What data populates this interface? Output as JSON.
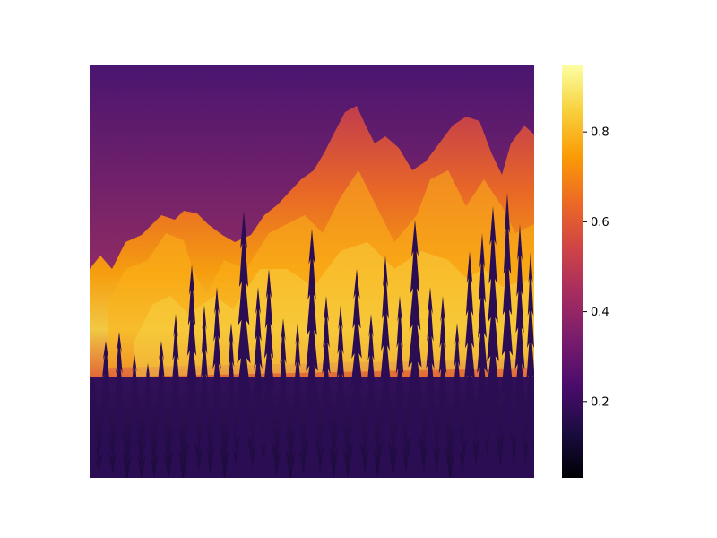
{
  "image": {
    "subject": "forest-fire",
    "colormap": "inferno",
    "axes_visible": false
  },
  "colorbar": {
    "range": [
      0.03,
      0.95
    ],
    "ticks": [
      {
        "value": 0.2,
        "label": "0.2"
      },
      {
        "value": 0.4,
        "label": "0.4"
      },
      {
        "value": 0.6,
        "label": "0.6"
      },
      {
        "value": 0.8,
        "label": "0.8"
      }
    ],
    "colormap_stops": [
      "#000004",
      "#1b0c41",
      "#4a0c6b",
      "#781c6d",
      "#a52c60",
      "#cf4446",
      "#ed6925",
      "#fb9b06",
      "#f7d13d",
      "#fcffa4"
    ]
  }
}
